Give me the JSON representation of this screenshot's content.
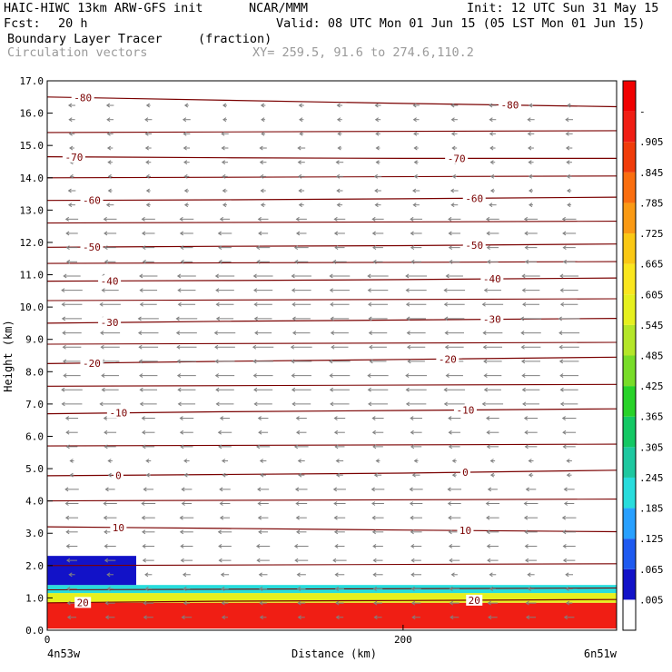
{
  "header": {
    "model": "HAIC-HIWC 13km ARW-GFS init",
    "org": "NCAR/MMM",
    "init": "Init: 12 UTC Sun 31 May 15",
    "fcst_label": "Fcst:",
    "fcst_value": "20 h",
    "valid": "Valid: 08 UTC Mon 01 Jun 15 (05 LST Mon 01 Jun 15)",
    "field": "Boundary Layer Tracer",
    "units": "(fraction)",
    "vectors": "Circulation vectors",
    "xy": "XY= 259.5, 91.6 to 274.6,110.2"
  },
  "axes": {
    "ylabel": "Height (km)",
    "xlabel": "Distance (km)",
    "left_end_label": "4n53w",
    "right_end_label": "6n51w"
  },
  "colorbar": {
    "labels": [
      ".005",
      ".065",
      ".125",
      ".185",
      ".245",
      ".305",
      ".365",
      ".425",
      ".485",
      ".545",
      ".605",
      ".665",
      ".725",
      ".785",
      ".845",
      ".905",
      "-"
    ],
    "colors": [
      "#ffffff",
      "#1212c8",
      "#1e5af0",
      "#28a0ff",
      "#28dcdc",
      "#1ec8a0",
      "#14c864",
      "#28d228",
      "#78dc28",
      "#b4e628",
      "#e6f01e",
      "#fae61e",
      "#fac814",
      "#fa9a14",
      "#fa6e0f",
      "#f03c0a",
      "#f01e14",
      "#f00000"
    ]
  },
  "chart_data": {
    "type": "heatmap",
    "title": "Boundary Layer Tracer",
    "xlabel": "Distance (km)",
    "ylabel": "Height (km)",
    "xlim": [
      0,
      320
    ],
    "ylim": [
      0,
      17
    ],
    "x_ticks": [
      "0",
      "200"
    ],
    "y_ticks": [
      "0.0",
      "1.0",
      "2.0",
      "3.0",
      "4.0",
      "5.0",
      "6.0",
      "7.0",
      "8.0",
      "9.0",
      "10.0",
      "11.0",
      "12.0",
      "13.0",
      "14.0",
      "15.0",
      "16.0",
      "17.0"
    ],
    "tracer_field": {
      "units": "fraction",
      "description_values": "near 1 below ~1 km, decreasing to 0 near 1.4 km; elevated layer up to ~2.3 km at x < 50 km",
      "layers": [
        {
          "x": [
            0,
            320
          ],
          "bottom_km": 0.05,
          "top_km": 0.85,
          "value": 0.95
        },
        {
          "x": [
            0,
            320
          ],
          "bottom_km": 0.85,
          "top_km": 1.15,
          "value": 0.6
        },
        {
          "x": [
            0,
            320
          ],
          "bottom_km": 1.15,
          "top_km": 1.4,
          "value": 0.2
        },
        {
          "x": [
            0,
            50
          ],
          "bottom_km": 1.4,
          "top_km": 2.3,
          "value": 0.05
        }
      ]
    },
    "temperature_contours": {
      "units": "C",
      "isotherms": [
        {
          "label": "20",
          "x": [
            0,
            100,
            200,
            320
          ],
          "y": [
            0.85,
            0.9,
            0.92,
            0.95
          ],
          "label_x": [
            20,
            240
          ]
        },
        {
          "label": "10",
          "x": [
            0,
            100,
            200,
            320
          ],
          "y": [
            3.2,
            3.15,
            3.1,
            3.05
          ],
          "label_x": [
            40,
            235
          ]
        },
        {
          "label": "0",
          "x": [
            0,
            100,
            200,
            320
          ],
          "y": [
            4.78,
            4.82,
            4.86,
            4.95
          ],
          "label_x": [
            40,
            235
          ]
        },
        {
          "label": "-10",
          "x": [
            0,
            100,
            200,
            320
          ],
          "y": [
            6.7,
            6.76,
            6.8,
            6.85
          ],
          "label_x": [
            40,
            235
          ]
        },
        {
          "label": "-20",
          "x": [
            0,
            100,
            200,
            320
          ],
          "y": [
            8.25,
            8.32,
            8.38,
            8.45
          ],
          "label_x": [
            25,
            225
          ]
        },
        {
          "label": "-30",
          "x": [
            0,
            100,
            200,
            320
          ],
          "y": [
            9.5,
            9.56,
            9.6,
            9.65
          ],
          "label_x": [
            35,
            250
          ]
        },
        {
          "label": "-40",
          "x": [
            0,
            100,
            200,
            320
          ],
          "y": [
            10.8,
            10.82,
            10.85,
            10.9
          ],
          "label_x": [
            35,
            250
          ]
        },
        {
          "label": "-50",
          "x": [
            0,
            100,
            200,
            320
          ],
          "y": [
            11.85,
            11.88,
            11.9,
            11.95
          ],
          "label_x": [
            25,
            240
          ]
        },
        {
          "label": "-60",
          "x": [
            0,
            100,
            200,
            320
          ],
          "y": [
            13.3,
            13.32,
            13.35,
            13.4
          ],
          "label_x": [
            25,
            240
          ]
        },
        {
          "label": "-70",
          "x": [
            0,
            100,
            200,
            320
          ],
          "y": [
            14.65,
            14.62,
            14.6,
            14.6
          ],
          "label_x": [
            15,
            230
          ]
        },
        {
          "label": "-80",
          "x": [
            0,
            100,
            200,
            320
          ],
          "y": [
            16.5,
            16.4,
            16.3,
            16.2
          ],
          "label_x": [
            20,
            260
          ]
        }
      ],
      "unlabeled_levels_km": [
        1.25,
        2.0,
        4.0,
        5.7,
        7.55,
        8.85,
        10.2,
        11.35,
        12.6,
        14.0,
        15.4
      ]
    },
    "circulation_vectors": {
      "description_values": "mostly easterly (pointing left), strongest 7–11 km; weak near 5 km and above 13 km"
    }
  }
}
